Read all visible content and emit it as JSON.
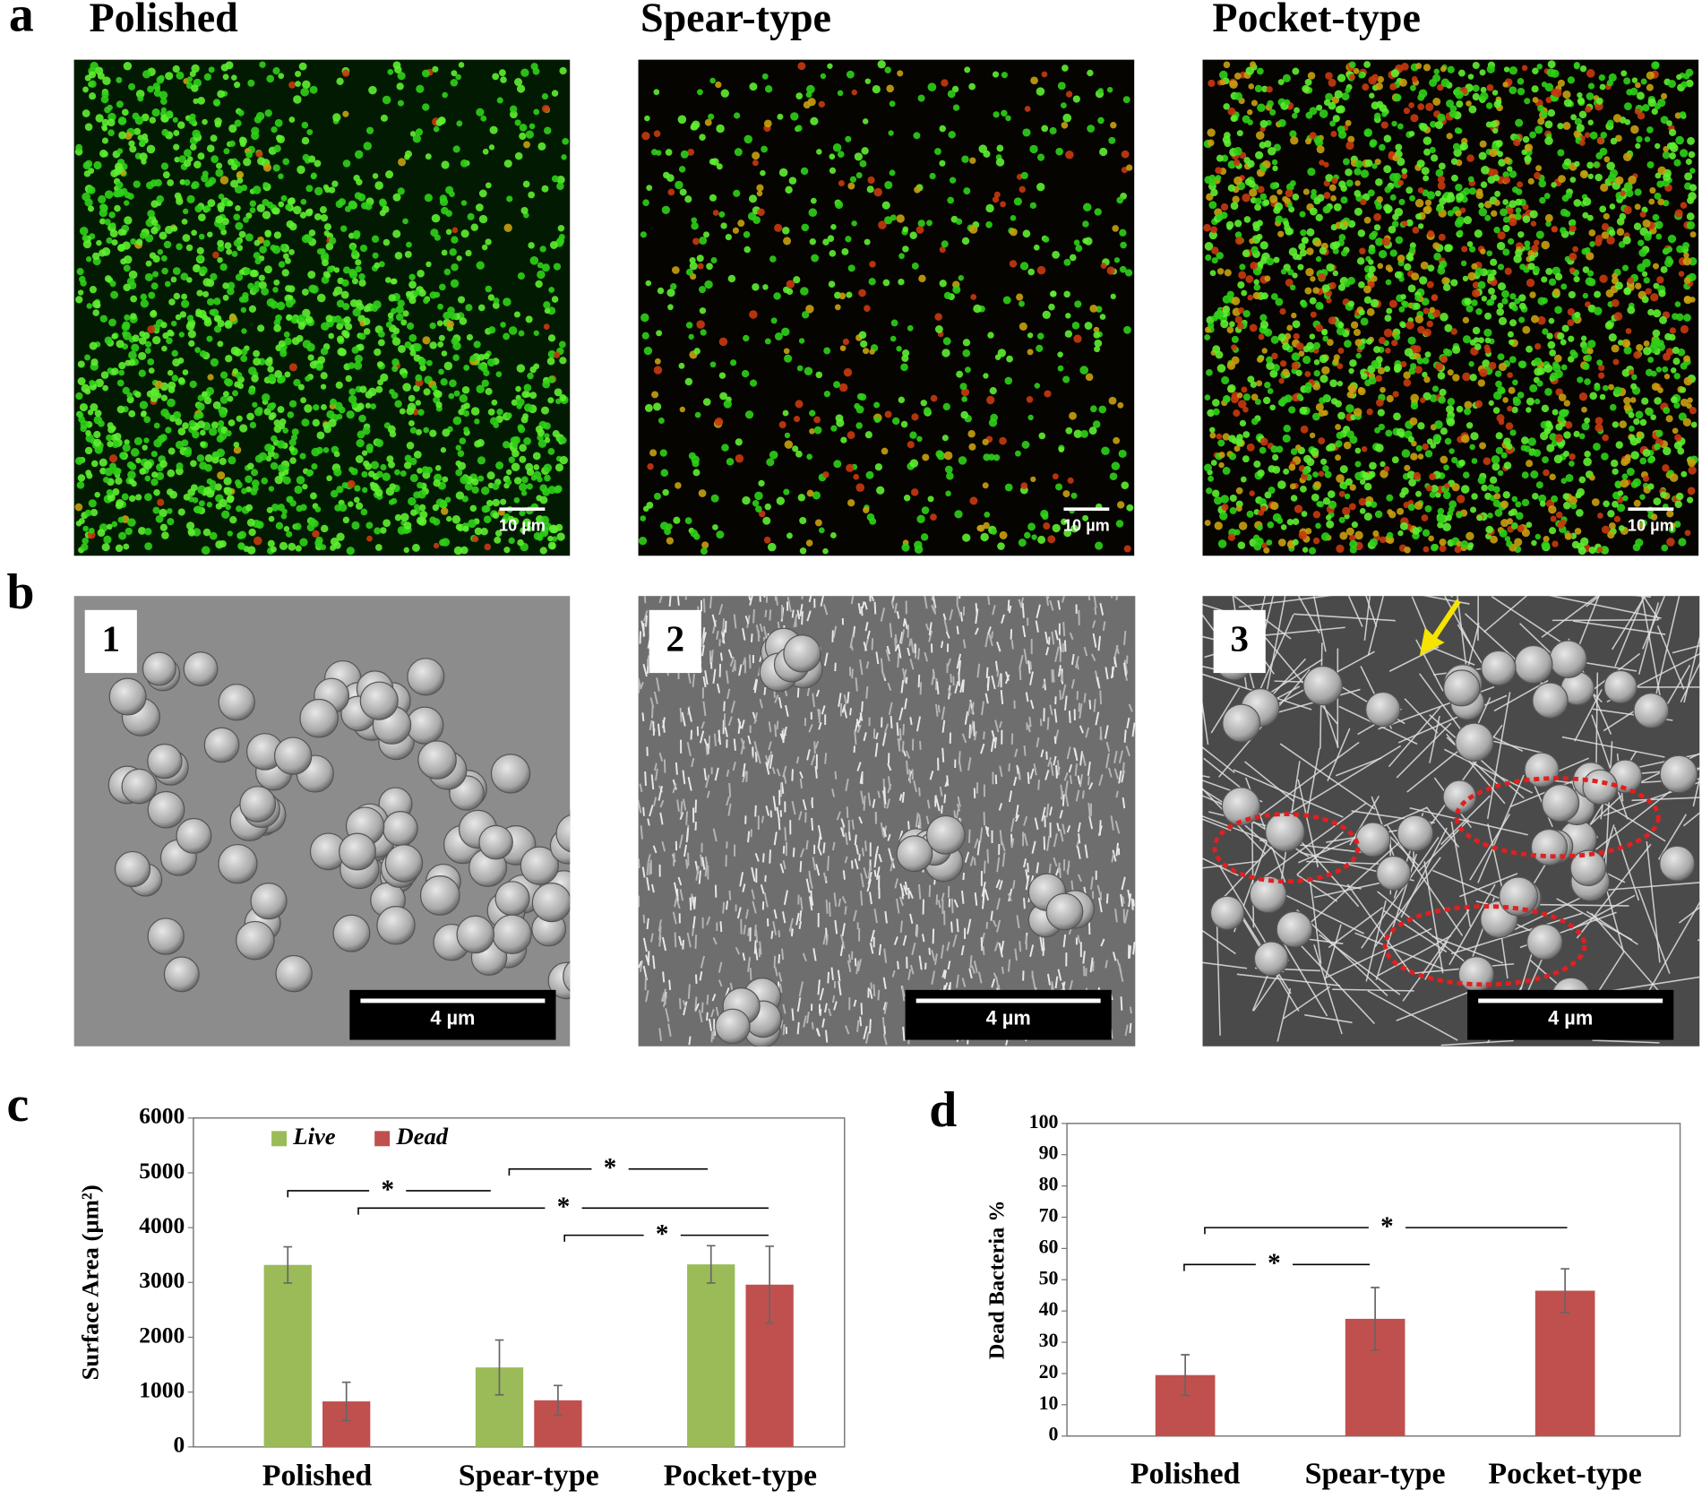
{
  "panels": {
    "labels": [
      "a",
      "b",
      "c",
      "d"
    ],
    "titles": [
      "Polished",
      "Spear-type",
      "Pocket-type"
    ],
    "scale_bars_a": [
      "10 µm",
      "10 µm",
      "10 µm"
    ],
    "scale_bars_b": [
      "4 µm",
      "4 µm",
      "4 µm"
    ],
    "sem_labels": [
      "1",
      "2",
      "3"
    ]
  },
  "chart_data": [
    {
      "type": "bar",
      "y_label": "Surface Area (µm²)",
      "categories": [
        "Polished",
        "Spear-type",
        "Pocket-type"
      ],
      "series": [
        {
          "name": "Live",
          "color": "#9bbb59",
          "values": [
            3320,
            1450,
            3330
          ],
          "errors": [
            330,
            500,
            340
          ]
        },
        {
          "name": "Dead",
          "color": "#c0504d",
          "values": [
            830,
            850,
            2960
          ],
          "errors": [
            350,
            270,
            700
          ]
        }
      ],
      "ylim": [
        0,
        6000
      ],
      "yticks": [
        0,
        1000,
        2000,
        3000,
        4000,
        5000,
        6000
      ],
      "significance": [
        "*",
        "*",
        "*",
        "*"
      ]
    },
    {
      "type": "bar",
      "y_label": "Dead Bacteria %",
      "categories": [
        "Polished",
        "Spear-type",
        "Pocket-type"
      ],
      "values": [
        19.5,
        37.5,
        46.5
      ],
      "errors": [
        6.5,
        10,
        7
      ],
      "color": "#c0504d",
      "ylim": [
        0,
        100
      ],
      "yticks": [
        0,
        10,
        20,
        30,
        40,
        50,
        60,
        70,
        80,
        90,
        100
      ],
      "significance": [
        "*",
        "*"
      ]
    }
  ]
}
